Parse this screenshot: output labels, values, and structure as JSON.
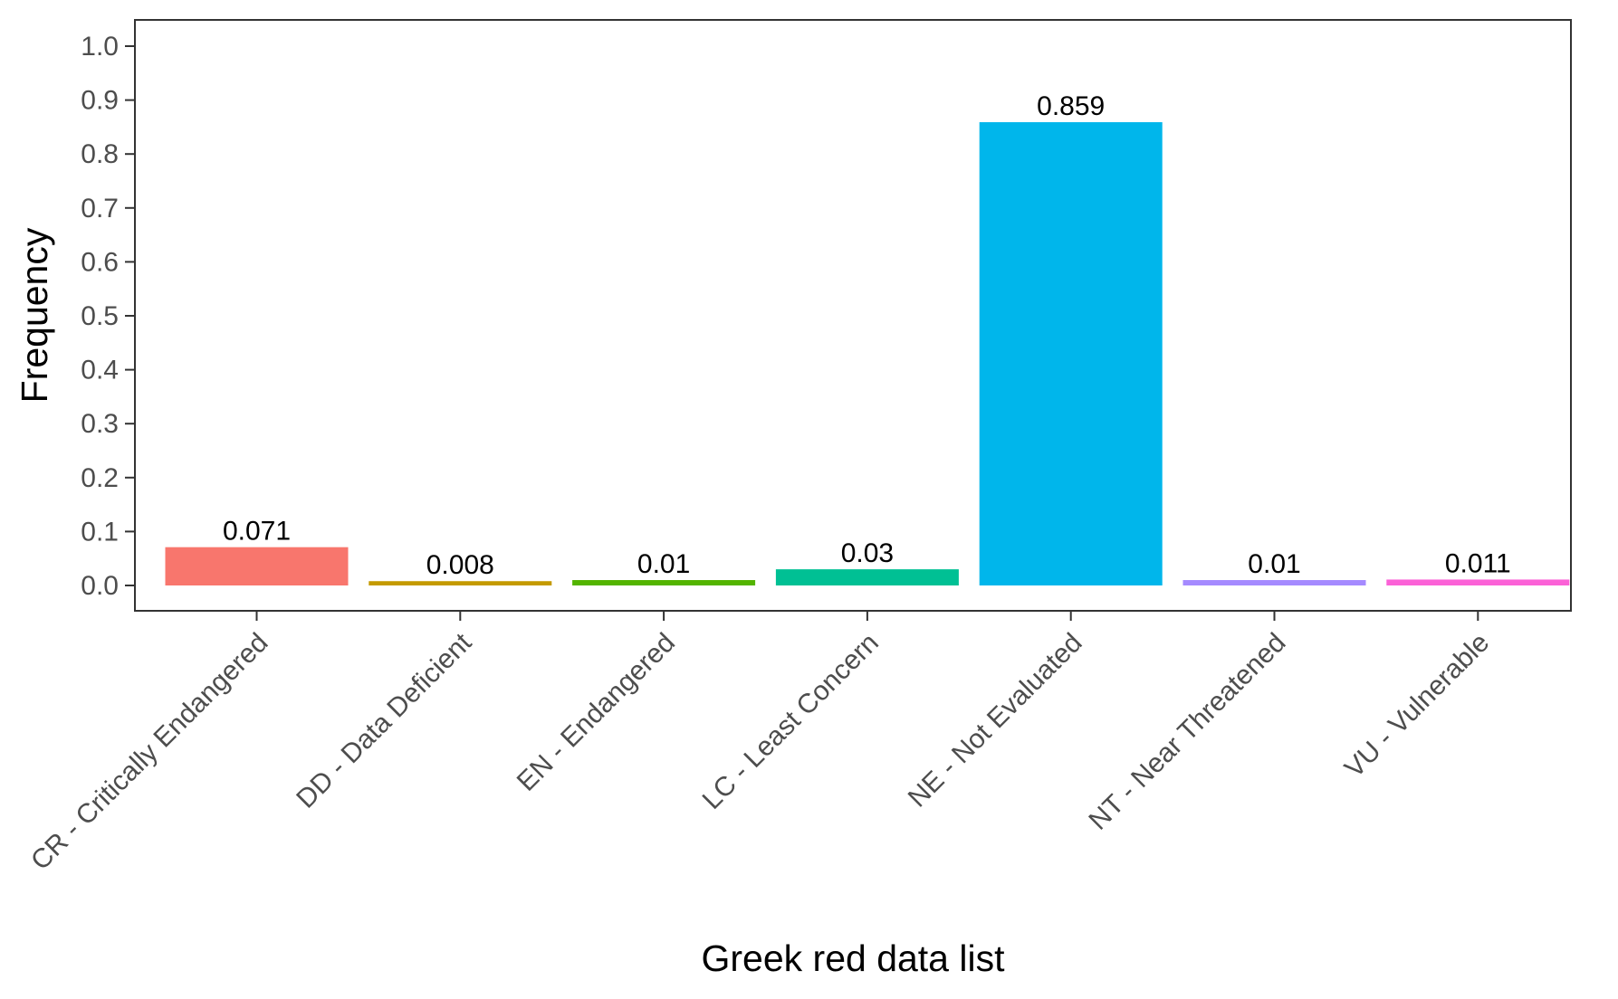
{
  "chart_data": {
    "type": "bar",
    "title": "",
    "xlabel": "Greek red data list",
    "ylabel": "Frequency",
    "ylim": [
      0,
      1.0
    ],
    "yticks": [
      0.0,
      0.1,
      0.2,
      0.3,
      0.4,
      0.5,
      0.6,
      0.7,
      0.8,
      0.9,
      1.0
    ],
    "ytick_labels": [
      "0.0",
      "0.1",
      "0.2",
      "0.3",
      "0.4",
      "0.5",
      "0.6",
      "0.7",
      "0.8",
      "0.9",
      "1.0"
    ],
    "grid": false,
    "legend": "none",
    "categories": [
      "CR - Critically Endangered",
      "DD - Data Deficient",
      "EN - Endangered",
      "LC - Least Concern",
      "NE - Not Evaluated",
      "NT - Near Threatened",
      "VU - Vulnerable"
    ],
    "values": [
      0.071,
      0.008,
      0.01,
      0.03,
      0.859,
      0.01,
      0.011
    ],
    "value_labels": [
      "0.071",
      "0.008",
      "0.01",
      "0.03",
      "0.859",
      "0.01",
      "0.011"
    ],
    "colors": [
      "#F8766D",
      "#C49A00",
      "#53B400",
      "#00C094",
      "#00B6EB",
      "#A58AFF",
      "#FB61D7"
    ]
  }
}
